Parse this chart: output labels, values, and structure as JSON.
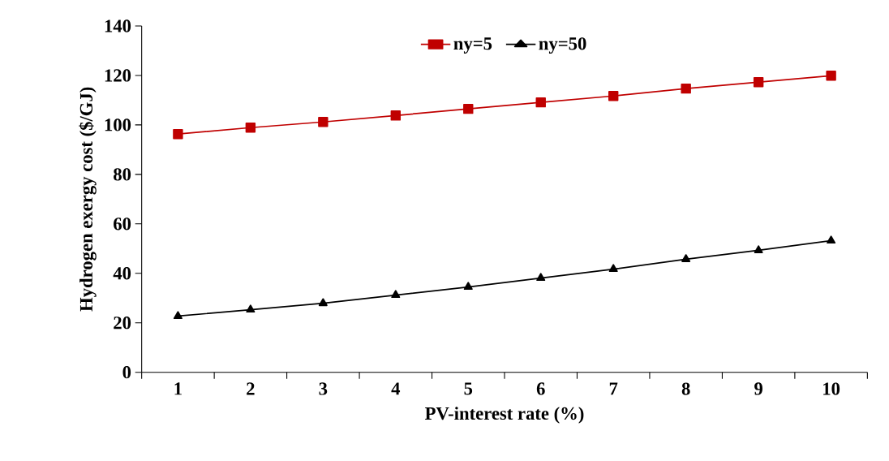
{
  "chart_data": {
    "type": "line",
    "xlabel": "PV-interest rate (%)",
    "ylabel": "Hydrogen exergy cost ($/GJ)",
    "categories": [
      "1",
      "2",
      "3",
      "4",
      "5",
      "6",
      "7",
      "8",
      "9",
      "10"
    ],
    "series": [
      {
        "name": "ny=5",
        "color": "#c00000",
        "marker": "square",
        "values": [
          96.3,
          98.9,
          101.2,
          103.8,
          106.5,
          109.1,
          111.7,
          114.7,
          117.3,
          119.9
        ]
      },
      {
        "name": "ny=50",
        "color": "#000000",
        "marker": "triangle",
        "values": [
          22.7,
          25.3,
          27.9,
          31.2,
          34.5,
          38.1,
          41.7,
          45.7,
          49.3,
          53.2
        ]
      }
    ],
    "ylim": [
      0,
      140
    ],
    "yticks": [
      0,
      20,
      40,
      60,
      80,
      100,
      120,
      140
    ],
    "grid": false,
    "legend": "top",
    "line_style": "solid"
  }
}
